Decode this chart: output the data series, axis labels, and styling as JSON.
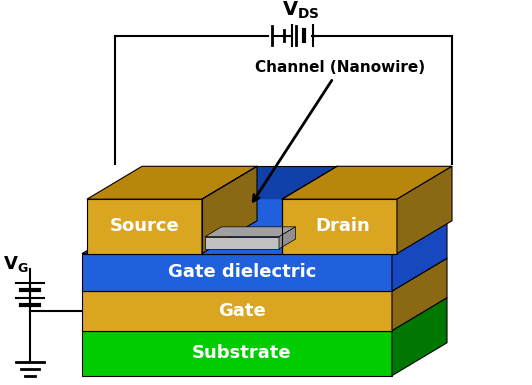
{
  "colors": {
    "gold_top": "#B8860B",
    "gold_front": "#DAA520",
    "gold_side": "#8B6914",
    "gold_bright": "#FFD700",
    "blue_front": "#2060DD",
    "blue_top": "#1040AA",
    "blue_side": "#1848C0",
    "green_front": "#00CC00",
    "green_top": "#009900",
    "green_side": "#007700",
    "gray_nw": "#C0C0C0",
    "gray_nw_top": "#A0A0A0",
    "white": "#FFFFFF",
    "black": "#000000"
  },
  "labels": {
    "source": "Source",
    "drain": "Drain",
    "channel": "Channel (Nanowire)",
    "gate_dielectric": "Gate dielectric",
    "gate": "Gate",
    "substrate": "Substrate"
  }
}
